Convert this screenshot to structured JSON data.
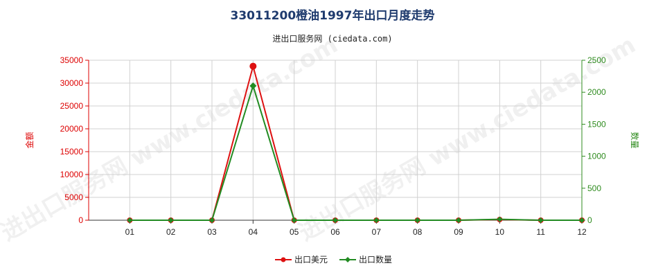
{
  "chart_data": {
    "type": "line",
    "title": "33011200橙油1997年出口月度走势",
    "subtitle": "进出口服务网 (ciedata.com)",
    "watermark": "进出口服务网 www.ciedata.com",
    "categories": [
      "01",
      "02",
      "03",
      "04",
      "05",
      "06",
      "07",
      "08",
      "09",
      "10",
      "11",
      "12"
    ],
    "y_left": {
      "label": "金额",
      "ylim": [
        0,
        35000
      ],
      "ticks": [
        0,
        5000,
        10000,
        15000,
        20000,
        25000,
        30000,
        35000
      ],
      "color": "#dd0000"
    },
    "y_right": {
      "label": "数量",
      "ylim": [
        0,
        2500
      ],
      "ticks": [
        0,
        500,
        1000,
        1500,
        2000,
        2500
      ],
      "color": "#2e8b1e"
    },
    "series": [
      {
        "name": "出口美元",
        "axis": "left",
        "color": "#dd1111",
        "values": [
          0,
          0,
          0,
          33700,
          0,
          0,
          0,
          0,
          0,
          150,
          0,
          0
        ]
      },
      {
        "name": "出口数量",
        "axis": "right",
        "color": "#228b22",
        "values": [
          0,
          0,
          0,
          2100,
          0,
          0,
          0,
          0,
          0,
          15,
          0,
          0
        ]
      }
    ],
    "grid": true,
    "legend_position": "bottom-center"
  }
}
